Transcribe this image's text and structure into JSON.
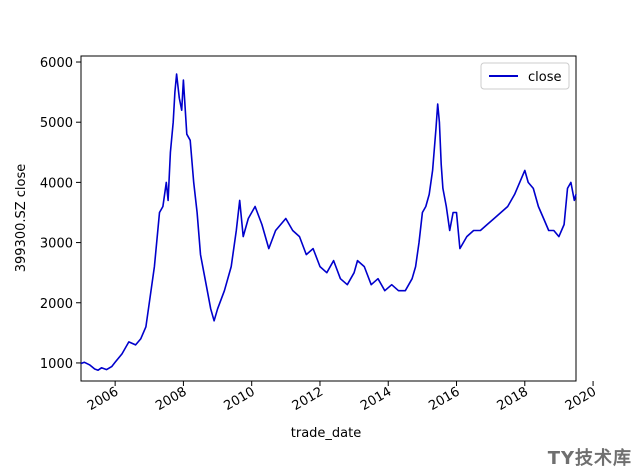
{
  "chart_data": {
    "type": "line",
    "title": "",
    "xlabel": "trade_date",
    "ylabel": "399300.SZ close",
    "xlim": [
      2005.0,
      2019.5
    ],
    "ylim": [
      700,
      6100
    ],
    "x_ticks": [
      2006,
      2008,
      2010,
      2012,
      2014,
      2016,
      2018,
      2020
    ],
    "x_tick_labels": [
      "2006",
      "2008",
      "2010",
      "2012",
      "2014",
      "2016",
      "2018",
      "2020"
    ],
    "y_ticks": [
      1000,
      2000,
      3000,
      4000,
      5000,
      6000
    ],
    "y_tick_labels": [
      "1000",
      "2000",
      "3000",
      "4000",
      "5000",
      "6000"
    ],
    "legend": {
      "position": "top-right",
      "entries": [
        "close"
      ]
    },
    "grid": false,
    "series": [
      {
        "name": "close",
        "color": "#0000cc",
        "x": [
          2005.0,
          2005.1,
          2005.25,
          2005.4,
          2005.5,
          2005.6,
          2005.75,
          2005.9,
          2006.0,
          2006.2,
          2006.4,
          2006.6,
          2006.75,
          2006.9,
          2007.0,
          2007.15,
          2007.3,
          2007.4,
          2007.5,
          2007.55,
          2007.62,
          2007.7,
          2007.75,
          2007.8,
          2007.88,
          2007.95,
          2008.0,
          2008.1,
          2008.2,
          2008.3,
          2008.4,
          2008.5,
          2008.6,
          2008.7,
          2008.8,
          2008.9,
          2009.0,
          2009.2,
          2009.4,
          2009.55,
          2009.65,
          2009.75,
          2009.9,
          2010.1,
          2010.3,
          2010.5,
          2010.7,
          2010.85,
          2011.0,
          2011.2,
          2011.4,
          2011.6,
          2011.8,
          2012.0,
          2012.2,
          2012.4,
          2012.6,
          2012.8,
          2013.0,
          2013.1,
          2013.3,
          2013.5,
          2013.7,
          2013.9,
          2014.1,
          2014.3,
          2014.5,
          2014.6,
          2014.7,
          2014.8,
          2014.9,
          2015.0,
          2015.1,
          2015.2,
          2015.3,
          2015.4,
          2015.45,
          2015.5,
          2015.55,
          2015.6,
          2015.7,
          2015.8,
          2015.9,
          2016.0,
          2016.1,
          2016.3,
          2016.5,
          2016.7,
          2016.9,
          2017.1,
          2017.3,
          2017.5,
          2017.7,
          2017.85,
          2018.0,
          2018.1,
          2018.25,
          2018.4,
          2018.55,
          2018.7,
          2018.85,
          2019.0,
          2019.15,
          2019.25,
          2019.35,
          2019.45,
          2019.5
        ],
        "y": [
          990,
          1010,
          970,
          900,
          880,
          920,
          890,
          940,
          1010,
          1150,
          1350,
          1300,
          1400,
          1600,
          2000,
          2600,
          3500,
          3600,
          4000,
          3700,
          4500,
          5000,
          5500,
          5800,
          5400,
          5200,
          5700,
          4800,
          4700,
          4000,
          3500,
          2800,
          2500,
          2200,
          1900,
          1700,
          1900,
          2200,
          2600,
          3200,
          3700,
          3100,
          3400,
          3600,
          3300,
          2900,
          3200,
          3300,
          3400,
          3200,
          3100,
          2800,
          2900,
          2600,
          2500,
          2700,
          2400,
          2300,
          2500,
          2700,
          2600,
          2300,
          2400,
          2200,
          2300,
          2200,
          2200,
          2300,
          2400,
          2600,
          3000,
          3500,
          3600,
          3800,
          4200,
          4900,
          5300,
          5000,
          4300,
          3900,
          3600,
          3200,
          3500,
          3500,
          2900,
          3100,
          3200,
          3200,
          3300,
          3400,
          3500,
          3600,
          3800,
          4000,
          4200,
          4000,
          3900,
          3600,
          3400,
          3200,
          3200,
          3100,
          3300,
          3900,
          4000,
          3700,
          3800
        ]
      }
    ]
  },
  "watermark": "TY技术库"
}
